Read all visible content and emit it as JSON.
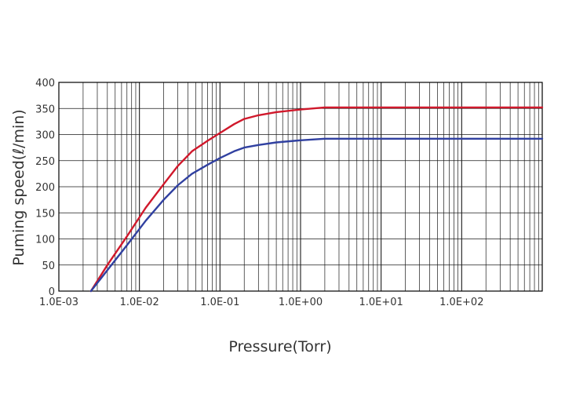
{
  "chart_data": {
    "type": "line",
    "title": "",
    "xlabel": "Pressure(Torr)",
    "ylabel": "Puming speed(ℓ/min)",
    "xscale": "log",
    "xlim": [
      0.001,
      1000
    ],
    "ylim": [
      0,
      400
    ],
    "grid": true,
    "legend": "none",
    "x_tick_labels": [
      "1.0E-03",
      "1.0E-02",
      "1.0E-01",
      "1.0E+00",
      "1.0E+01",
      "1.0E+02"
    ],
    "x_tick_values": [
      0.001,
      0.01,
      0.1,
      1,
      10,
      100
    ],
    "y_ticks": [
      0,
      50,
      100,
      150,
      200,
      250,
      300,
      350,
      400
    ],
    "series": [
      {
        "color": "#d0182b",
        "x": [
          0.0025,
          0.004,
          0.007,
          0.012,
          0.02,
          0.03,
          0.045,
          0.07,
          0.1,
          0.15,
          0.2,
          0.3,
          0.5,
          1,
          2,
          10,
          100,
          1000
        ],
        "y": [
          0,
          50,
          105,
          160,
          205,
          240,
          268,
          288,
          303,
          320,
          330,
          337,
          343,
          348,
          352,
          352,
          352,
          352
        ]
      },
      {
        "color": "#3040a0",
        "x": [
          0.0025,
          0.004,
          0.007,
          0.012,
          0.02,
          0.03,
          0.045,
          0.07,
          0.1,
          0.15,
          0.2,
          0.3,
          0.5,
          1,
          2,
          10,
          100,
          1000
        ],
        "y": [
          0,
          40,
          88,
          135,
          175,
          203,
          225,
          242,
          255,
          268,
          275,
          280,
          285,
          289,
          292,
          292,
          292,
          292
        ]
      }
    ]
  }
}
